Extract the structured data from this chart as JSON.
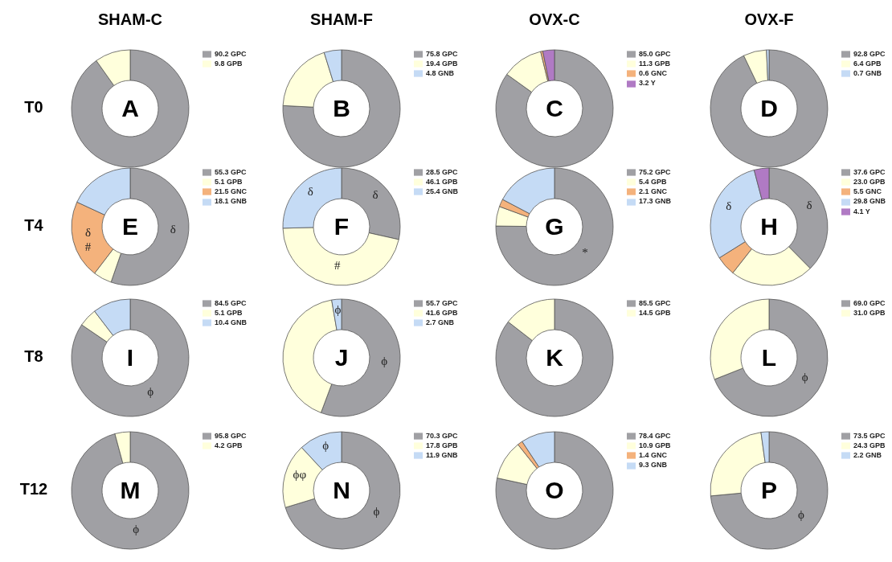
{
  "chart_data": [
    {
      "type": "donut",
      "title": "SHAM-C",
      "ylabel": "T0",
      "categories": [
        "GPC",
        "GPB"
      ],
      "values": [
        90.2,
        9.8
      ],
      "value_labels": [
        "90.2",
        "9.8"
      ],
      "colors": [
        "#a0a0a4",
        "#ffffdc"
      ],
      "legend": "right",
      "annotations": [
        "A"
      ]
    },
    {
      "type": "donut",
      "title": "SHAM-F",
      "categories": [
        "GPC",
        "GPB",
        "GNB"
      ],
      "values": [
        75.8,
        19.4,
        4.8
      ],
      "value_labels": [
        "75.8",
        "19.4",
        "4.8"
      ],
      "colors": [
        "#a0a0a4",
        "#ffffdc",
        "#c5dbf5"
      ],
      "legend": "right",
      "annotations": [
        "B"
      ]
    },
    {
      "type": "donut",
      "title": "OVX-C",
      "categories": [
        "GPC",
        "GPB",
        "GNC",
        "Y"
      ],
      "values": [
        85.0,
        11.3,
        0.6,
        3.2
      ],
      "value_labels": [
        "85.0",
        "11.3",
        "0.6",
        "3.2"
      ],
      "colors": [
        "#a0a0a4",
        "#ffffdc",
        "#f4b27c",
        "#b07ac4"
      ],
      "legend": "right",
      "annotations": [
        "C"
      ]
    },
    {
      "type": "donut",
      "title": "OVX-F",
      "categories": [
        "GPC",
        "GPB",
        "GNB"
      ],
      "values": [
        92.8,
        6.4,
        0.7
      ],
      "value_labels": [
        "92.8",
        "6.4",
        "0.7"
      ],
      "colors": [
        "#a0a0a4",
        "#ffffdc",
        "#c5dbf5"
      ],
      "legend": "right",
      "annotations": [
        "D"
      ]
    },
    {
      "type": "donut",
      "ylabel": "T4",
      "categories": [
        "GPC",
        "GPB",
        "GNC",
        "GNB"
      ],
      "values": [
        55.3,
        5.1,
        21.5,
        18.1
      ],
      "value_labels": [
        "55.3",
        "5.1",
        "21.5",
        "18.1"
      ],
      "colors": [
        "#a0a0a4",
        "#ffffdc",
        "#f4b27c",
        "#c5dbf5"
      ],
      "legend": "right",
      "annotations": [
        "E",
        {
          "text": "δ",
          "x": "GPC"
        },
        {
          "text": "δ",
          "x": "GNC"
        },
        {
          "text": "#",
          "x": "GNC"
        }
      ]
    },
    {
      "type": "donut",
      "categories": [
        "GPC",
        "GPB",
        "GNB"
      ],
      "values": [
        28.5,
        46.1,
        25.4
      ],
      "value_labels": [
        "28.5",
        "46.1",
        "25.4"
      ],
      "colors": [
        "#a0a0a4",
        "#ffffdc",
        "#c5dbf5"
      ],
      "legend": "right",
      "annotations": [
        "F",
        {
          "text": "δ",
          "x": "GPC"
        },
        {
          "text": "#",
          "x": "GPB"
        },
        {
          "text": "δ",
          "x": "GNB"
        }
      ]
    },
    {
      "type": "donut",
      "categories": [
        "GPC",
        "GPB",
        "GNC",
        "GNB"
      ],
      "values": [
        75.2,
        5.4,
        2.1,
        17.3
      ],
      "value_labels": [
        "75.2",
        "5.4",
        "2.1",
        "17.3"
      ],
      "colors": [
        "#a0a0a4",
        "#ffffdc",
        "#f4b27c",
        "#c5dbf5"
      ],
      "legend": "right",
      "annotations": [
        "G",
        {
          "text": "*",
          "x": "GPC"
        }
      ]
    },
    {
      "type": "donut",
      "categories": [
        "GPC",
        "GPB",
        "GNC",
        "GNB",
        "Y"
      ],
      "values": [
        37.6,
        23.0,
        5.5,
        29.8,
        4.1
      ],
      "value_labels": [
        "37.6",
        "23.0",
        "5.5",
        "29.8",
        "4.1"
      ],
      "colors": [
        "#a0a0a4",
        "#ffffdc",
        "#f4b27c",
        "#c5dbf5",
        "#b07ac4"
      ],
      "legend": "right",
      "annotations": [
        "H",
        {
          "text": "δ",
          "x": "GPC"
        },
        {
          "text": "δ",
          "x": "GNB"
        }
      ]
    },
    {
      "type": "donut",
      "ylabel": "T8",
      "categories": [
        "GPC",
        "GPB",
        "GNB"
      ],
      "values": [
        84.5,
        5.1,
        10.4
      ],
      "value_labels": [
        "84.5",
        "5.1",
        "10.4"
      ],
      "colors": [
        "#a0a0a4",
        "#ffffdc",
        "#c5dbf5"
      ],
      "legend": "right",
      "annotations": [
        "I",
        {
          "text": "ϕ",
          "x": "GPC"
        }
      ]
    },
    {
      "type": "donut",
      "categories": [
        "GPC",
        "GPB",
        "GNB"
      ],
      "values": [
        55.7,
        41.6,
        2.7
      ],
      "value_labels": [
        "55.7",
        "41.6",
        "2.7"
      ],
      "colors": [
        "#a0a0a4",
        "#ffffdc",
        "#c5dbf5"
      ],
      "legend": "right",
      "annotations": [
        "J",
        {
          "text": "ϕ",
          "x": "GPC"
        },
        {
          "text": "ϕ",
          "x": "GNB"
        }
      ]
    },
    {
      "type": "donut",
      "categories": [
        "GPC",
        "GPB"
      ],
      "values": [
        85.5,
        14.5
      ],
      "value_labels": [
        "85.5",
        "14.5"
      ],
      "colors": [
        "#a0a0a4",
        "#ffffdc"
      ],
      "legend": "right",
      "annotations": [
        "K"
      ]
    },
    {
      "type": "donut",
      "categories": [
        "GPC",
        "GPB"
      ],
      "values": [
        69.0,
        31.0
      ],
      "value_labels": [
        "69.0",
        "31.0"
      ],
      "colors": [
        "#a0a0a4",
        "#ffffdc"
      ],
      "legend": "right",
      "annotations": [
        "L",
        {
          "text": "ϕ",
          "x": "GPC"
        }
      ]
    },
    {
      "type": "donut",
      "ylabel": "T12",
      "categories": [
        "GPC",
        "GPB"
      ],
      "values": [
        95.8,
        4.2
      ],
      "value_labels": [
        "95.8",
        "4.2"
      ],
      "colors": [
        "#a0a0a4",
        "#ffffdc"
      ],
      "legend": "right",
      "annotations": [
        "M",
        {
          "text": "ϕ",
          "x": "GPC"
        }
      ]
    },
    {
      "type": "donut",
      "categories": [
        "GPC",
        "GPB",
        "GNB"
      ],
      "values": [
        70.3,
        17.8,
        11.9
      ],
      "value_labels": [
        "70.3",
        "17.8",
        "11.9"
      ],
      "colors": [
        "#a0a0a4",
        "#ffffdc",
        "#c5dbf5"
      ],
      "legend": "right",
      "annotations": [
        "N",
        {
          "text": "ϕ",
          "x": "GPC"
        },
        {
          "text": "ϕφ",
          "x": "GPB"
        },
        {
          "text": "ϕ",
          "x": "GNB"
        }
      ]
    },
    {
      "type": "donut",
      "categories": [
        "GPC",
        "GPB",
        "GNC",
        "GNB"
      ],
      "values": [
        78.4,
        10.9,
        1.4,
        9.3
      ],
      "value_labels": [
        "78.4",
        "10.9",
        "1.4",
        "9.3"
      ],
      "colors": [
        "#a0a0a4",
        "#ffffdc",
        "#f4b27c",
        "#c5dbf5"
      ],
      "legend": "right",
      "annotations": [
        "O"
      ]
    },
    {
      "type": "donut",
      "categories": [
        "GPC",
        "GPB",
        "GNB"
      ],
      "values": [
        73.5,
        24.3,
        2.2
      ],
      "value_labels": [
        "73.5",
        "24.3",
        "2.2"
      ],
      "colors": [
        "#a0a0a4",
        "#ffffdc",
        "#c5dbf5"
      ],
      "legend": "right",
      "annotations": [
        "P",
        {
          "text": "ϕ",
          "x": "GPC"
        }
      ]
    }
  ]
}
